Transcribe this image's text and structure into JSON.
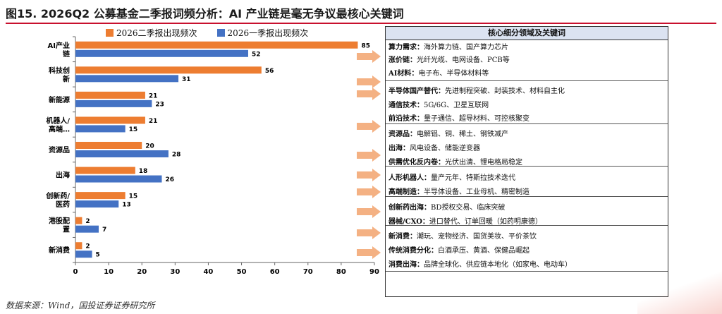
{
  "header": {
    "title": "图15. 2026Q2 公募基金二季报词频分析：AI 产业链是毫无争议最核心关键词"
  },
  "source": "数据来源：Wind，国投证券证券研究所",
  "colors": {
    "orange": "#ed7d31",
    "blue": "#4472c4",
    "arrow": "#f4b183",
    "accent": "#c8102e"
  },
  "chart_data": {
    "type": "bar",
    "orientation": "horizontal",
    "categories": [
      [
        "AI产业",
        "链"
      ],
      [
        "科技创",
        "新"
      ],
      [
        "新能源"
      ],
      [
        "机器人/",
        "高端…"
      ],
      [
        "资源品"
      ],
      [
        "出海"
      ],
      [
        "创新药/",
        "医药"
      ],
      [
        "港股配",
        "置"
      ],
      [
        "新消费"
      ]
    ],
    "series": [
      {
        "name": "2026二季报出现频次",
        "values": [
          85,
          56,
          21,
          21,
          20,
          18,
          15,
          2,
          2
        ]
      },
      {
        "name": "2026一季报出现频次",
        "values": [
          52,
          31,
          23,
          15,
          28,
          26,
          13,
          7,
          5
        ]
      }
    ],
    "xlim": [
      0,
      90
    ],
    "xticks": [
      0,
      10,
      20,
      30,
      40,
      50,
      60,
      70,
      80,
      90
    ],
    "legend": "top"
  },
  "panel": {
    "title": "核心细分领域及关键词",
    "rows": [
      {
        "key": "算力需求：",
        "text": "海外算力链、国产算力芯片"
      },
      {
        "key": "涨价链：",
        "text": "光纤光缆、电网设备、PCB等"
      },
      {
        "key": "AI材料：",
        "text": "电子布、半导体材料等"
      },
      {
        "key": "半导体国产替代：",
        "text": "先进制程突破、封装技术、材料自主化"
      },
      {
        "key": "通信技术：",
        "text": "5G/6G、卫星互联网"
      },
      {
        "key": "前沿技术：",
        "text": "量子通信、超导材料、可控核聚变"
      },
      {
        "key": "资源品：",
        "text": "电解铝、铜、稀土、钢铁减产"
      },
      {
        "key": "出海：",
        "text": "风电设备、储能逆变器"
      },
      {
        "key": "供需优化反内卷：",
        "text": "光伏出清、锂电格局稳定"
      },
      {
        "key": "人形机器人：",
        "text": "量产元年、特斯拉技术迭代"
      },
      {
        "key": "高端制造：",
        "text": "半导体设备、工业母机、精密制造"
      },
      {
        "key": "创新药出海：",
        "text": "BD授权交易、临床突破"
      },
      {
        "key": "器械/CXO：",
        "text": "进口替代、订单回暖（如药明康德）"
      },
      {
        "key": "新消费：",
        "text": "潮玩、宠物经济、国货美妆、平价茶饮"
      },
      {
        "key": "传统消费分化：",
        "text": "白酒承压、黄酒、保健品崛起"
      },
      {
        "key": "消费出海：",
        "text": "品牌全球化、供应链本地化（如家电、电动车）"
      }
    ]
  }
}
